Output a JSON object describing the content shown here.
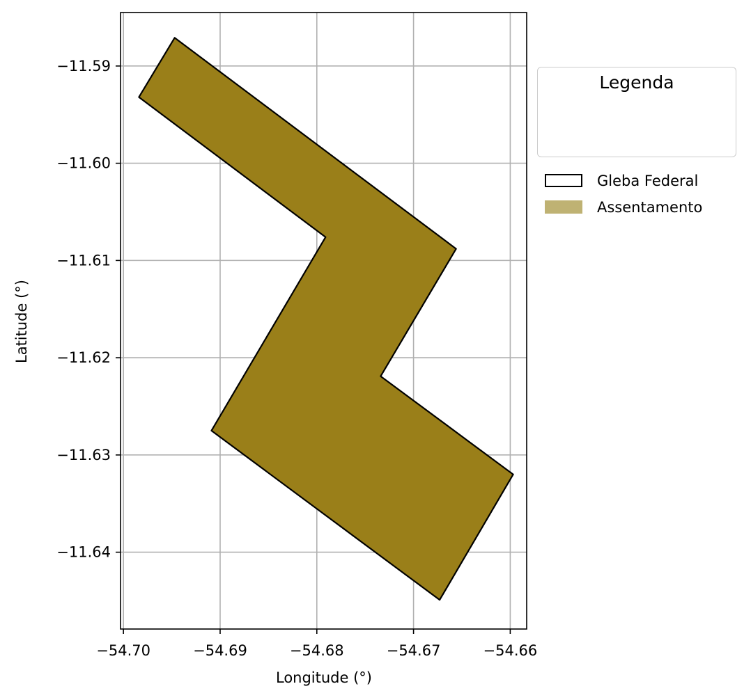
{
  "chart_data": {
    "type": "map",
    "xlabel": "Longitude (°)",
    "ylabel": "Latitude (°)",
    "xlim": [
      -54.7003,
      -54.6583
    ],
    "ylim": [
      -11.6479,
      -11.5845
    ],
    "xticks": [
      -54.7,
      -54.69,
      -54.68,
      -54.67,
      -54.66
    ],
    "xtick_labels": [
      "−54.70",
      "−54.69",
      "−54.68",
      "−54.67",
      "−54.66"
    ],
    "yticks": [
      -11.59,
      -11.6,
      -11.61,
      -11.62,
      -11.63,
      -11.64
    ],
    "ytick_labels": [
      "−11.59",
      "−11.60",
      "−11.61",
      "−11.62",
      "−11.63",
      "−11.64"
    ],
    "grid": true,
    "polygon": {
      "coordinates": [
        [
          -54.6947,
          -11.5871
        ],
        [
          -54.6656,
          -11.6088
        ],
        [
          -54.6734,
          -11.6219
        ],
        [
          -54.6597,
          -11.632
        ],
        [
          -54.6673,
          -11.6449
        ],
        [
          -54.6909,
          -11.6275
        ],
        [
          -54.6791,
          -11.6076
        ],
        [
          -54.6984,
          -11.5932
        ]
      ],
      "fill_color": "#9a7f19",
      "edge_color": "#000000"
    },
    "legend": {
      "title": "Legenda",
      "placement": "outside-right-top",
      "entries": [
        {
          "label": "Gleba Federal",
          "style": "outline",
          "edge_color": "#000000",
          "fill_color": "#ffffff"
        },
        {
          "label": "Assentamento",
          "style": "filled",
          "fill_color": "#bfb273"
        }
      ]
    }
  }
}
